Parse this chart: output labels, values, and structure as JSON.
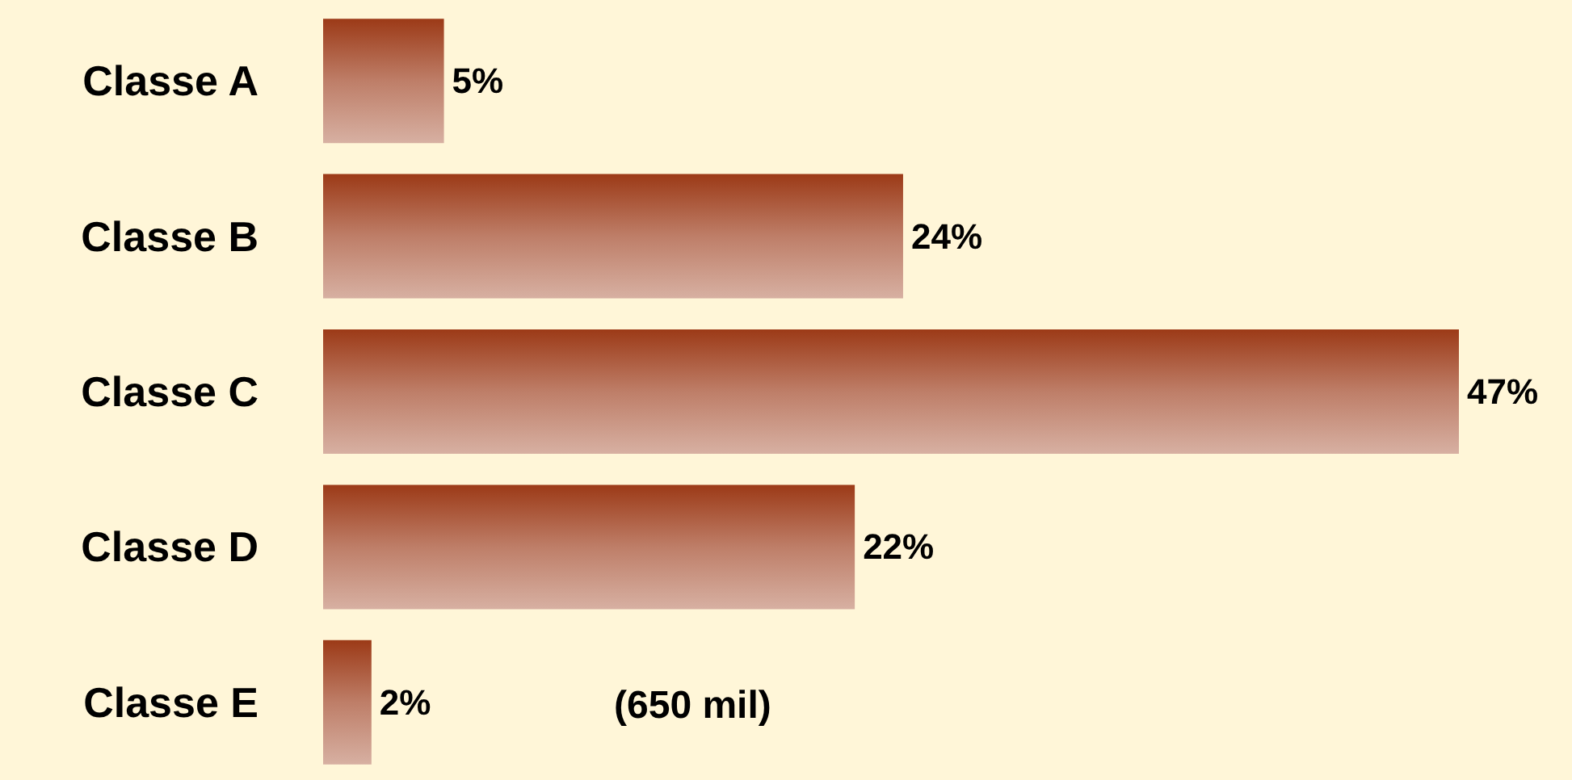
{
  "chart_data": {
    "type": "bar",
    "orientation": "horizontal",
    "categories": [
      "Classe A",
      "Classe B",
      "Classe C",
      "Classe D",
      "Classe E"
    ],
    "values": [
      5,
      24,
      47,
      22,
      2
    ],
    "value_labels": [
      "5%",
      "24%",
      "47%",
      "22%",
      "2%"
    ],
    "color": "#9c3a17",
    "annotations": [
      "(650 mil)"
    ]
  }
}
